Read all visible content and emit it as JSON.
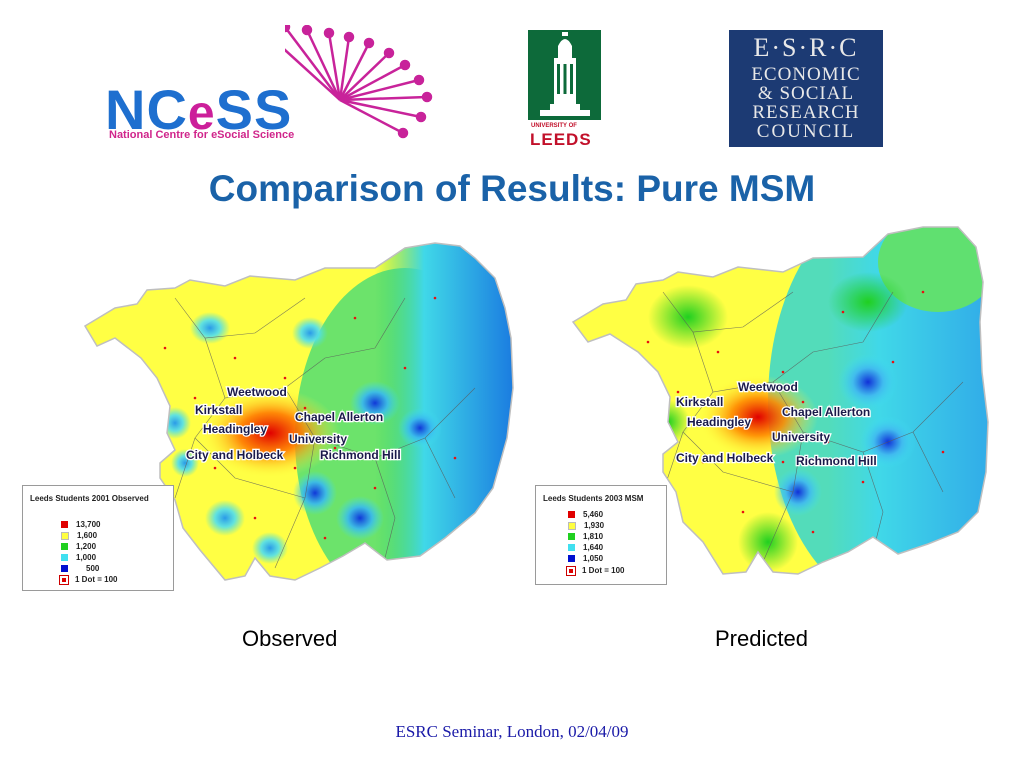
{
  "header": {
    "ncess": {
      "word_pre": "NC",
      "word_e": "e",
      "word_post": "SS",
      "subtitle": "National Centre for eSocial Science"
    },
    "leeds": {
      "top": "UNIVERSITY OF",
      "name": "LEEDS"
    },
    "esrc": {
      "line1": "E·S·R·C",
      "line2": "ECONOMIC",
      "line3": "& SOCIAL",
      "line4": "RESEARCH",
      "line5": "COUNCIL"
    }
  },
  "title": "Comparison of Results: Pure MSM",
  "maps": [
    {
      "caption": "Observed",
      "legend": {
        "title": "Leeds Students 2001 Observed",
        "classes": [
          {
            "label": "13,700",
            "color": "#e00000"
          },
          {
            "label": "1,600",
            "color": "#ffff40"
          },
          {
            "label": "1,200",
            "color": "#20d020"
          },
          {
            "label": "1,000",
            "color": "#40e0f0"
          },
          {
            "label": "500",
            "color": "#0010d0"
          }
        ],
        "dot_label": "1 Dot = 100"
      },
      "places": [
        "Weetwood",
        "Kirkstall",
        "Chapel Allerton",
        "Headingley",
        "University",
        "City and Holbeck",
        "Richmond Hill"
      ]
    },
    {
      "caption": "Predicted",
      "legend": {
        "title": "Leeds Students 2003 MSM",
        "classes": [
          {
            "label": "5,460",
            "color": "#e00000"
          },
          {
            "label": "1,930",
            "color": "#ffff40"
          },
          {
            "label": "1,810",
            "color": "#20d020"
          },
          {
            "label": "1,640",
            "color": "#40e0f0"
          },
          {
            "label": "1,050",
            "color": "#0010d0"
          }
        ],
        "dot_label": "1 Dot = 100"
      },
      "places": [
        "Weetwood",
        "Kirkstall",
        "Chapel Allerton",
        "Headingley",
        "University",
        "City and Holbeck",
        "Richmond Hill"
      ]
    }
  ],
  "footer": "ESRC Seminar, London, 02/04/09"
}
